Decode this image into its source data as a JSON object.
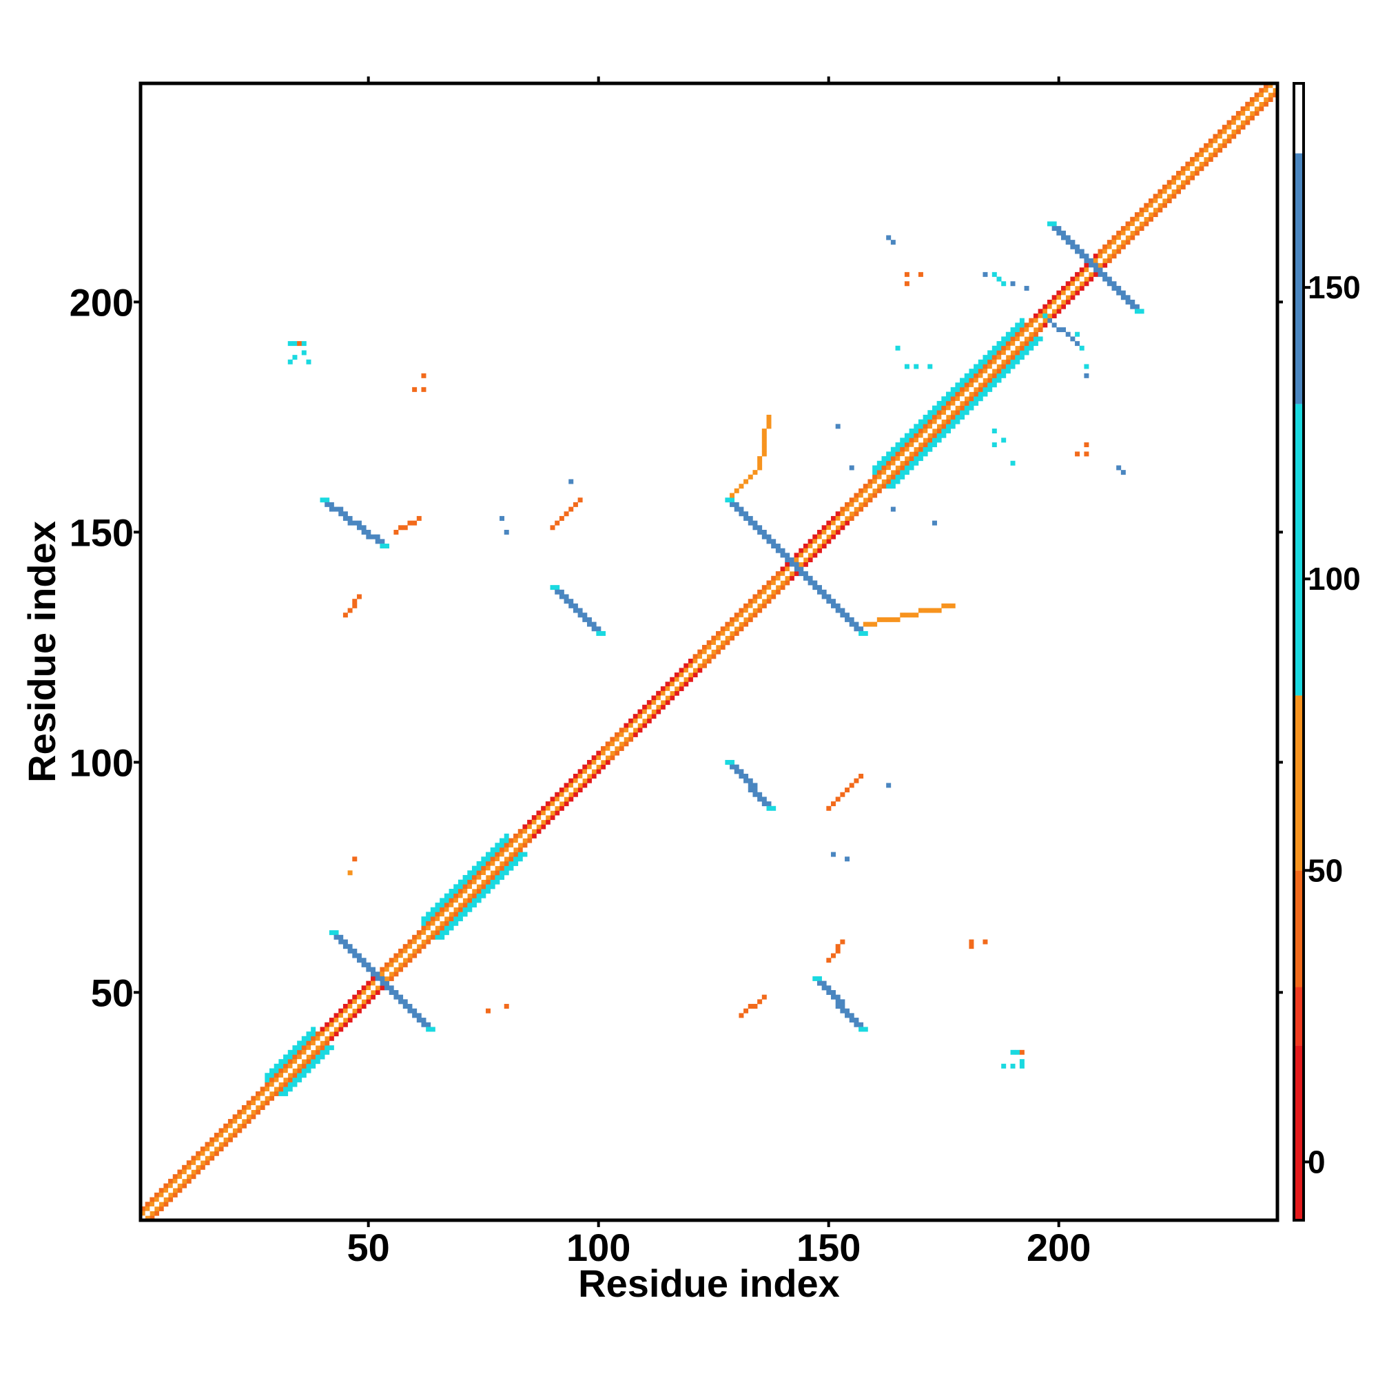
{
  "chart_data": {
    "type": "heatmap",
    "title": "",
    "xlabel": "Residue index",
    "ylabel": "Residue index",
    "xlim": [
      1,
      247
    ],
    "ylim": [
      1,
      247
    ],
    "x_ticks": [
      50,
      100,
      150,
      200
    ],
    "y_ticks": [
      50,
      100,
      150,
      200
    ],
    "colorbar": {
      "range": [
        -10,
        185
      ],
      "ticks": [
        0,
        50,
        100,
        150
      ],
      "segments": [
        {
          "from": -10,
          "to": 20,
          "color": "#e41a1c"
        },
        {
          "from": 20,
          "to": 30,
          "color": "#f03b20"
        },
        {
          "from": 30,
          "to": 50,
          "color": "#f26a1b"
        },
        {
          "from": 50,
          "to": 80,
          "color": "#f7931e"
        },
        {
          "from": 80,
          "to": 130,
          "color": "#1ad9e0"
        },
        {
          "from": 130,
          "to": 173,
          "color": "#4a86c0"
        },
        {
          "from": 173,
          "to": 185,
          "color": "#ffffff"
        }
      ]
    },
    "diagonal": {
      "start": 1,
      "end": 247,
      "bands": [
        {
          "offset": 0,
          "value": 175
        },
        {
          "offset": 1,
          "value": 60
        },
        {
          "offset": 2,
          "value": 45
        }
      ],
      "helix_regions": [
        [
          40,
          52
        ],
        [
          84,
          100
        ],
        [
          106,
          120
        ],
        [
          140,
          152
        ],
        [
          195,
          208
        ]
      ],
      "helix_value": 10,
      "thick_regions": [
        [
          28,
          38
        ],
        [
          62,
          80
        ],
        [
          160,
          192
        ]
      ],
      "thick_value": 95
    },
    "strips": [
      {
        "name": "antiparallel-42-53",
        "x0": 42,
        "y0": 63,
        "x1": 63,
        "y1": 42,
        "width": 2,
        "value": 150
      },
      {
        "name": "antiparallel-40-53-upper",
        "x0": 40,
        "y0": 157,
        "x1": 53,
        "y1": 147,
        "width": 2,
        "value": 150
      },
      {
        "name": "antiparallel-90-100",
        "x0": 90,
        "y0": 138,
        "x1": 100,
        "y1": 128,
        "width": 2,
        "value": 150
      },
      {
        "name": "antiparallel-128-137",
        "x0": 128,
        "y0": 100,
        "x1": 137,
        "y1": 90,
        "width": 2,
        "value": 150
      },
      {
        "name": "antiparallel-128-157",
        "x0": 128,
        "y0": 157,
        "x1": 157,
        "y1": 128,
        "width": 2,
        "value": 150
      },
      {
        "name": "antiparallel-147-157",
        "x0": 147,
        "y0": 53,
        "x1": 157,
        "y1": 42,
        "width": 2,
        "value": 150
      },
      {
        "name": "antiparallel-198-217",
        "x0": 198,
        "y0": 217,
        "x1": 217,
        "y1": 198,
        "width": 2,
        "value": 150
      },
      {
        "name": "line-45-47-lower",
        "x0": 45,
        "y0": 132,
        "x1": 48,
        "y1": 136,
        "width": 1,
        "value": 45
      },
      {
        "name": "line-55-60-upper",
        "x0": 56,
        "y0": 150,
        "x1": 61,
        "y1": 153,
        "width": 1,
        "value": 45
      },
      {
        "name": "line-89-95",
        "x0": 90,
        "y0": 151,
        "x1": 96,
        "y1": 157,
        "width": 1,
        "value": 40
      },
      {
        "name": "line-131-136",
        "x0": 131,
        "y0": 45,
        "x1": 136,
        "y1": 49,
        "width": 1,
        "value": 45
      },
      {
        "name": "line-149-154",
        "x0": 150,
        "y0": 57,
        "x1": 153,
        "y1": 61,
        "width": 1,
        "value": 45
      },
      {
        "name": "line-150-157",
        "x0": 150,
        "y0": 90,
        "x1": 157,
        "y1": 97,
        "width": 1,
        "value": 35
      },
      {
        "name": "line-129-134",
        "x0": 129,
        "y0": 158,
        "x1": 134,
        "y1": 163,
        "width": 1,
        "value": 50
      },
      {
        "name": "line-135-137",
        "x0": 135,
        "y0": 164,
        "x1": 137,
        "y1": 175,
        "width": 1,
        "value": 50
      },
      {
        "name": "line-158-177",
        "x0": 158,
        "y0": 130,
        "x1": 177,
        "y1": 134,
        "width": 1,
        "value": 50
      },
      {
        "name": "line-200-205",
        "x0": 197,
        "y0": 197,
        "x1": 205,
        "y1": 190,
        "width": 1,
        "value": 150
      }
    ],
    "points": [
      {
        "x": 33,
        "y": 191,
        "v": 100
      },
      {
        "x": 34,
        "y": 191,
        "v": 110
      },
      {
        "x": 35,
        "y": 191,
        "v": 40
      },
      {
        "x": 36,
        "y": 191,
        "v": 100
      },
      {
        "x": 36,
        "y": 189,
        "v": 100
      },
      {
        "x": 34,
        "y": 188,
        "v": 100
      },
      {
        "x": 33,
        "y": 187,
        "v": 100
      },
      {
        "x": 37,
        "y": 187,
        "v": 100
      },
      {
        "x": 190,
        "y": 37,
        "v": 100
      },
      {
        "x": 191,
        "y": 37,
        "v": 110
      },
      {
        "x": 192,
        "y": 37,
        "v": 40
      },
      {
        "x": 192,
        "y": 35,
        "v": 100
      },
      {
        "x": 190,
        "y": 34,
        "v": 100
      },
      {
        "x": 188,
        "y": 34,
        "v": 100
      },
      {
        "x": 192,
        "y": 34,
        "v": 100
      },
      {
        "x": 60,
        "y": 181,
        "v": 45
      },
      {
        "x": 62,
        "y": 181,
        "v": 45
      },
      {
        "x": 62,
        "y": 184,
        "v": 45
      },
      {
        "x": 181,
        "y": 61,
        "v": 45
      },
      {
        "x": 184,
        "y": 61,
        "v": 45
      },
      {
        "x": 181,
        "y": 60,
        "v": 45
      },
      {
        "x": 47,
        "y": 79,
        "v": 30
      },
      {
        "x": 46,
        "y": 76,
        "v": 50
      },
      {
        "x": 76,
        "y": 46,
        "v": 40
      },
      {
        "x": 80,
        "y": 47,
        "v": 30
      },
      {
        "x": 79,
        "y": 153,
        "v": 150
      },
      {
        "x": 80,
        "y": 150,
        "v": 150
      },
      {
        "x": 94,
        "y": 161,
        "v": 150
      },
      {
        "x": 151,
        "y": 80,
        "v": 150
      },
      {
        "x": 154,
        "y": 79,
        "v": 150
      },
      {
        "x": 163,
        "y": 95,
        "v": 150
      },
      {
        "x": 167,
        "y": 204,
        "v": 45
      },
      {
        "x": 167,
        "y": 206,
        "v": 45
      },
      {
        "x": 170,
        "y": 206,
        "v": 45
      },
      {
        "x": 206,
        "y": 167,
        "v": 45
      },
      {
        "x": 206,
        "y": 169,
        "v": 45
      },
      {
        "x": 204,
        "y": 167,
        "v": 45
      },
      {
        "x": 164,
        "y": 213,
        "v": 150
      },
      {
        "x": 213,
        "y": 164,
        "v": 150
      },
      {
        "x": 184,
        "y": 206,
        "v": 150
      },
      {
        "x": 186,
        "y": 206,
        "v": 100
      },
      {
        "x": 187,
        "y": 205,
        "v": 100
      },
      {
        "x": 188,
        "y": 204,
        "v": 100
      },
      {
        "x": 190,
        "y": 204,
        "v": 150
      },
      {
        "x": 193,
        "y": 203,
        "v": 150
      },
      {
        "x": 204,
        "y": 193,
        "v": 100
      },
      {
        "x": 205,
        "y": 190,
        "v": 100
      },
      {
        "x": 206,
        "y": 186,
        "v": 100
      },
      {
        "x": 206,
        "y": 184,
        "v": 150
      },
      {
        "x": 165,
        "y": 190,
        "v": 100
      },
      {
        "x": 167,
        "y": 186,
        "v": 100
      },
      {
        "x": 169,
        "y": 186,
        "v": 100
      },
      {
        "x": 172,
        "y": 186,
        "v": 100
      },
      {
        "x": 186,
        "y": 172,
        "v": 100
      },
      {
        "x": 186,
        "y": 169,
        "v": 100
      },
      {
        "x": 190,
        "y": 165,
        "v": 100
      },
      {
        "x": 188,
        "y": 170,
        "v": 100
      },
      {
        "x": 152,
        "y": 173,
        "v": 150
      },
      {
        "x": 173,
        "y": 152,
        "v": 150
      },
      {
        "x": 155,
        "y": 164,
        "v": 150
      },
      {
        "x": 164,
        "y": 155,
        "v": 150
      },
      {
        "x": 214,
        "y": 163,
        "v": 150
      },
      {
        "x": 163,
        "y": 214,
        "v": 150
      }
    ]
  }
}
